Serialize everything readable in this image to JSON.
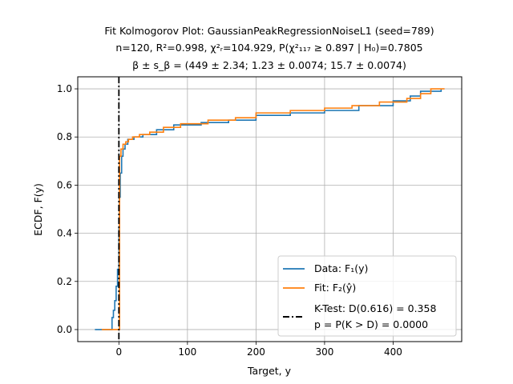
{
  "chart_data": {
    "type": "line",
    "title_lines": [
      "Fit Kolmogorov Plot: GaussianPeakRegressionNoiseL1 (seed=789)",
      "n=120, R²=0.998, χ²ᵣ=104.929, P(χ²₁₁₇ ≥ 0.897 | H₀)=0.7805",
      "β ± s_β = (449 ± 2.34; 1.23 ± 0.0074; 15.7 ± 0.0074)"
    ],
    "xlabel": "Target, y",
    "ylabel": "ECDF, F(y)",
    "xlim": [
      -60,
      500
    ],
    "ylim": [
      -0.05,
      1.05
    ],
    "xticks": [
      0,
      100,
      200,
      300,
      400
    ],
    "yticks": [
      0.0,
      0.2,
      0.4,
      0.6,
      0.8,
      1.0
    ],
    "grid": true,
    "legend_position": "lower-right",
    "series": [
      {
        "name": "Data: F₁(y)",
        "color": "#1f77b4",
        "points": [
          [
            -35,
            0.0
          ],
          [
            -12,
            0.0
          ],
          [
            -10,
            0.05
          ],
          [
            -8,
            0.08
          ],
          [
            -6,
            0.12
          ],
          [
            -4,
            0.18
          ],
          [
            -2,
            0.25
          ],
          [
            0,
            0.42
          ],
          [
            1,
            0.55
          ],
          [
            2,
            0.65
          ],
          [
            4,
            0.72
          ],
          [
            6,
            0.75
          ],
          [
            9,
            0.77
          ],
          [
            13,
            0.79
          ],
          [
            22,
            0.8
          ],
          [
            35,
            0.81
          ],
          [
            55,
            0.83
          ],
          [
            80,
            0.85
          ],
          [
            120,
            0.86
          ],
          [
            160,
            0.87
          ],
          [
            200,
            0.89
          ],
          [
            250,
            0.9
          ],
          [
            300,
            0.91
          ],
          [
            350,
            0.93
          ],
          [
            400,
            0.95
          ],
          [
            425,
            0.97
          ],
          [
            440,
            0.99
          ],
          [
            470,
            1.0
          ]
        ]
      },
      {
        "name": "Fit: F₂(ŷ)",
        "color": "#ff7f0e",
        "points": [
          [
            -25,
            0.0
          ],
          [
            0,
            0.0
          ],
          [
            1,
            0.72
          ],
          [
            3,
            0.75
          ],
          [
            6,
            0.77
          ],
          [
            10,
            0.78
          ],
          [
            14,
            0.79
          ],
          [
            20,
            0.8
          ],
          [
            30,
            0.81
          ],
          [
            45,
            0.82
          ],
          [
            65,
            0.84
          ],
          [
            90,
            0.855
          ],
          [
            130,
            0.87
          ],
          [
            170,
            0.88
          ],
          [
            200,
            0.9
          ],
          [
            250,
            0.91
          ],
          [
            300,
            0.92
          ],
          [
            340,
            0.93
          ],
          [
            380,
            0.945
          ],
          [
            420,
            0.96
          ],
          [
            440,
            0.98
          ],
          [
            455,
            1.0
          ],
          [
            475,
            1.0
          ]
        ]
      }
    ],
    "ktest": {
      "x": 0,
      "legend_line1": "K-Test: D(0.616) = 0.358",
      "legend_line2": "p = P(K > D) = 0.0000",
      "color": "#000000"
    }
  }
}
